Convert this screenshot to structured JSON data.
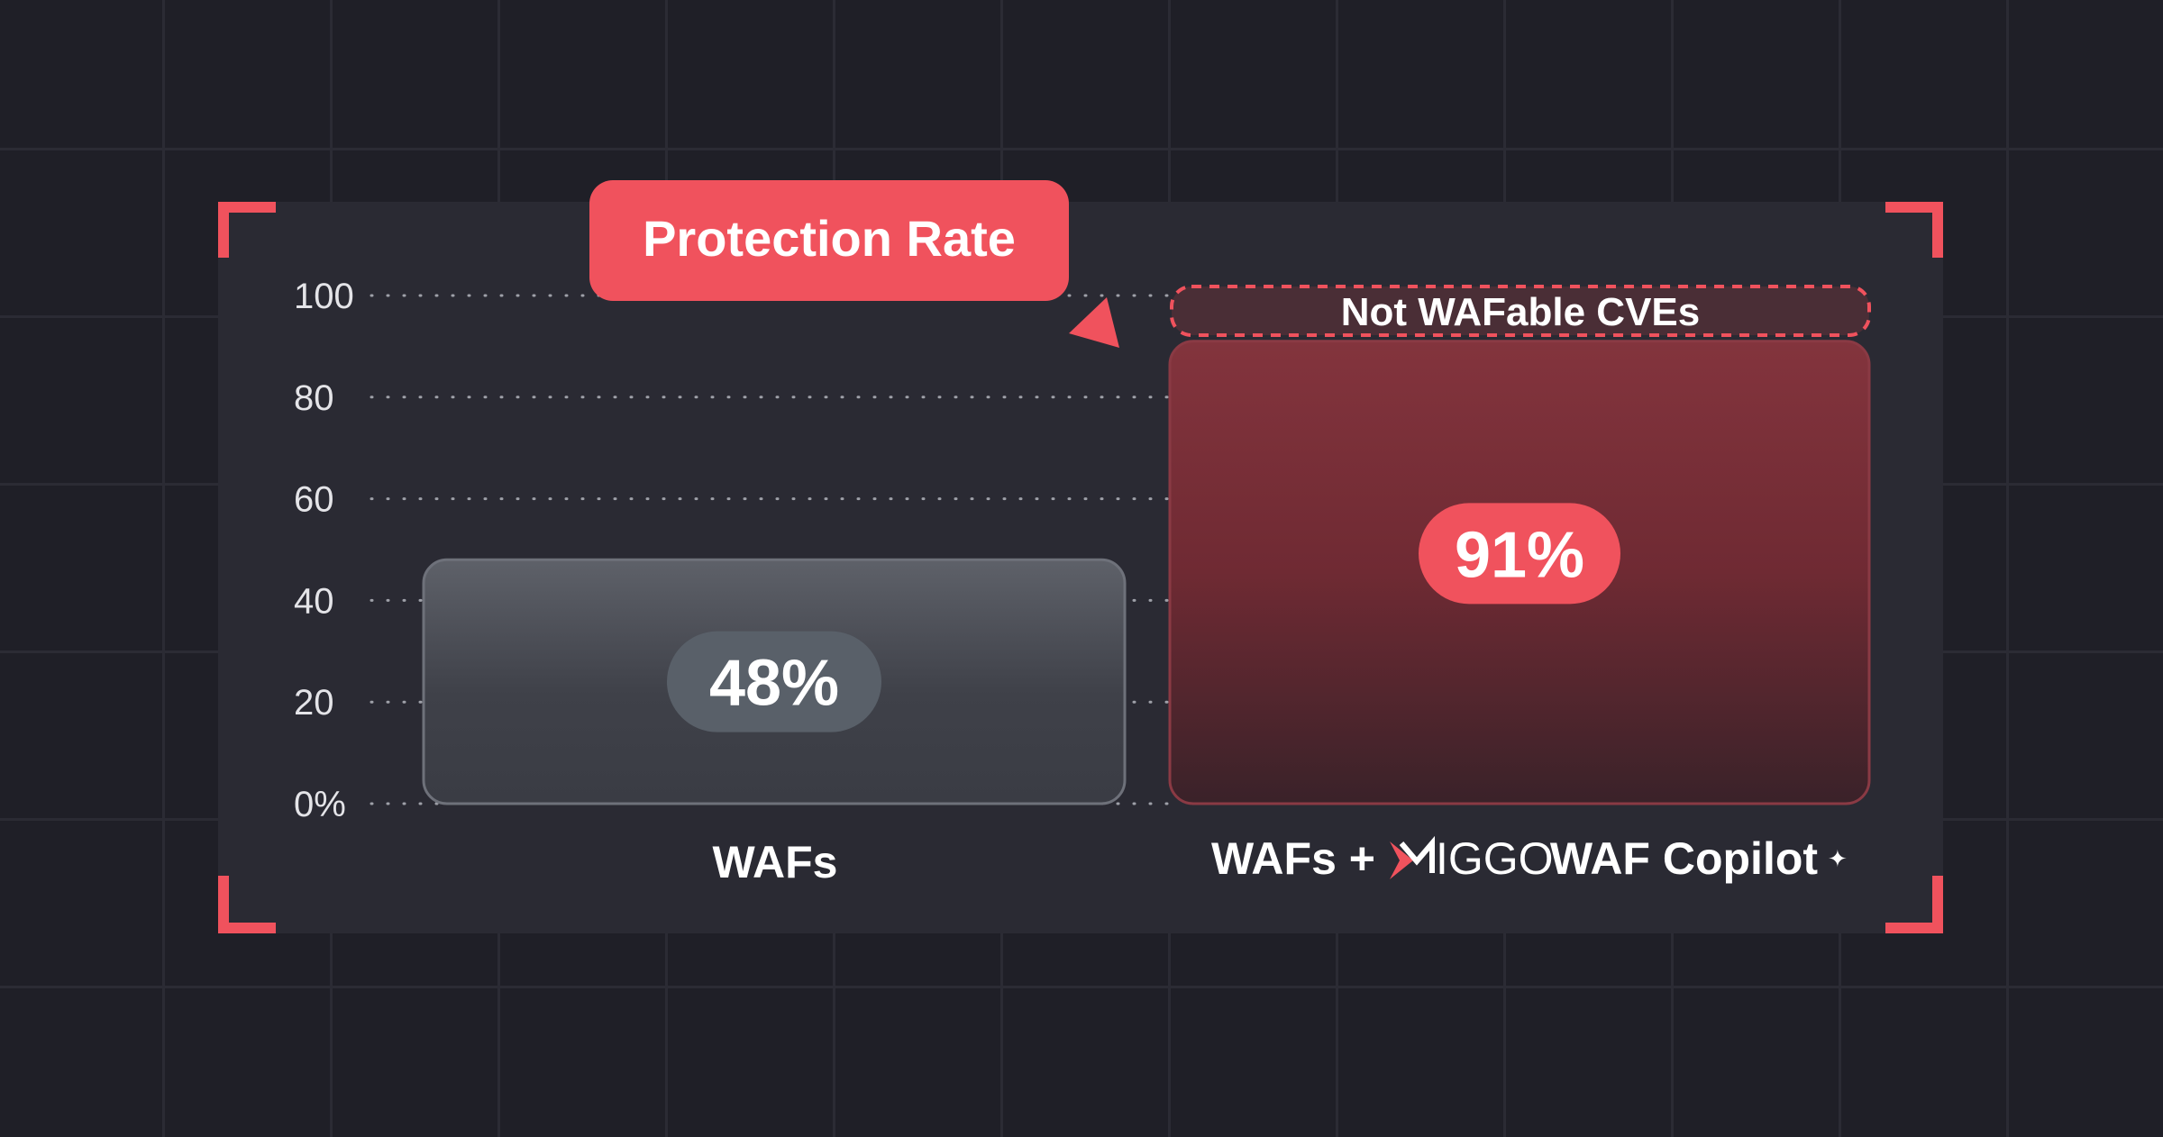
{
  "colors": {
    "accent": "#f0525d",
    "background": "#1f1f27",
    "panel": "#2a2a33",
    "bar_grey": "#5b5e67",
    "bar_red": "#7a2e37",
    "grid_dots": "#9ea0a8",
    "text": "#ffffff"
  },
  "title": "Protection Rate",
  "annotation": "Not WAFable CVEs",
  "brand": {
    "icon": "miggo-logo-icon",
    "logo_text": "IGGO",
    "suffix": " WAF Copilot",
    "sparkle_icon": "sparkle-icon"
  },
  "chart_data": {
    "type": "bar",
    "title": "Protection Rate",
    "categories": [
      "WAFs",
      "WAFs + MIGGO WAF Copilot"
    ],
    "values": [
      48,
      91
    ],
    "value_labels": [
      "48%",
      "91%"
    ],
    "ylim": [
      0,
      100
    ],
    "y_ticks": [
      {
        "value": 0,
        "label": "0%"
      },
      {
        "value": 20,
        "label": "20"
      },
      {
        "value": 40,
        "label": "40"
      },
      {
        "value": 60,
        "label": "60"
      },
      {
        "value": 80,
        "label": "80"
      },
      {
        "value": 100,
        "label": "100"
      }
    ],
    "grid": "dotted horizontal",
    "legend": "none",
    "annotations": [
      "Not WAFable CVEs"
    ]
  }
}
